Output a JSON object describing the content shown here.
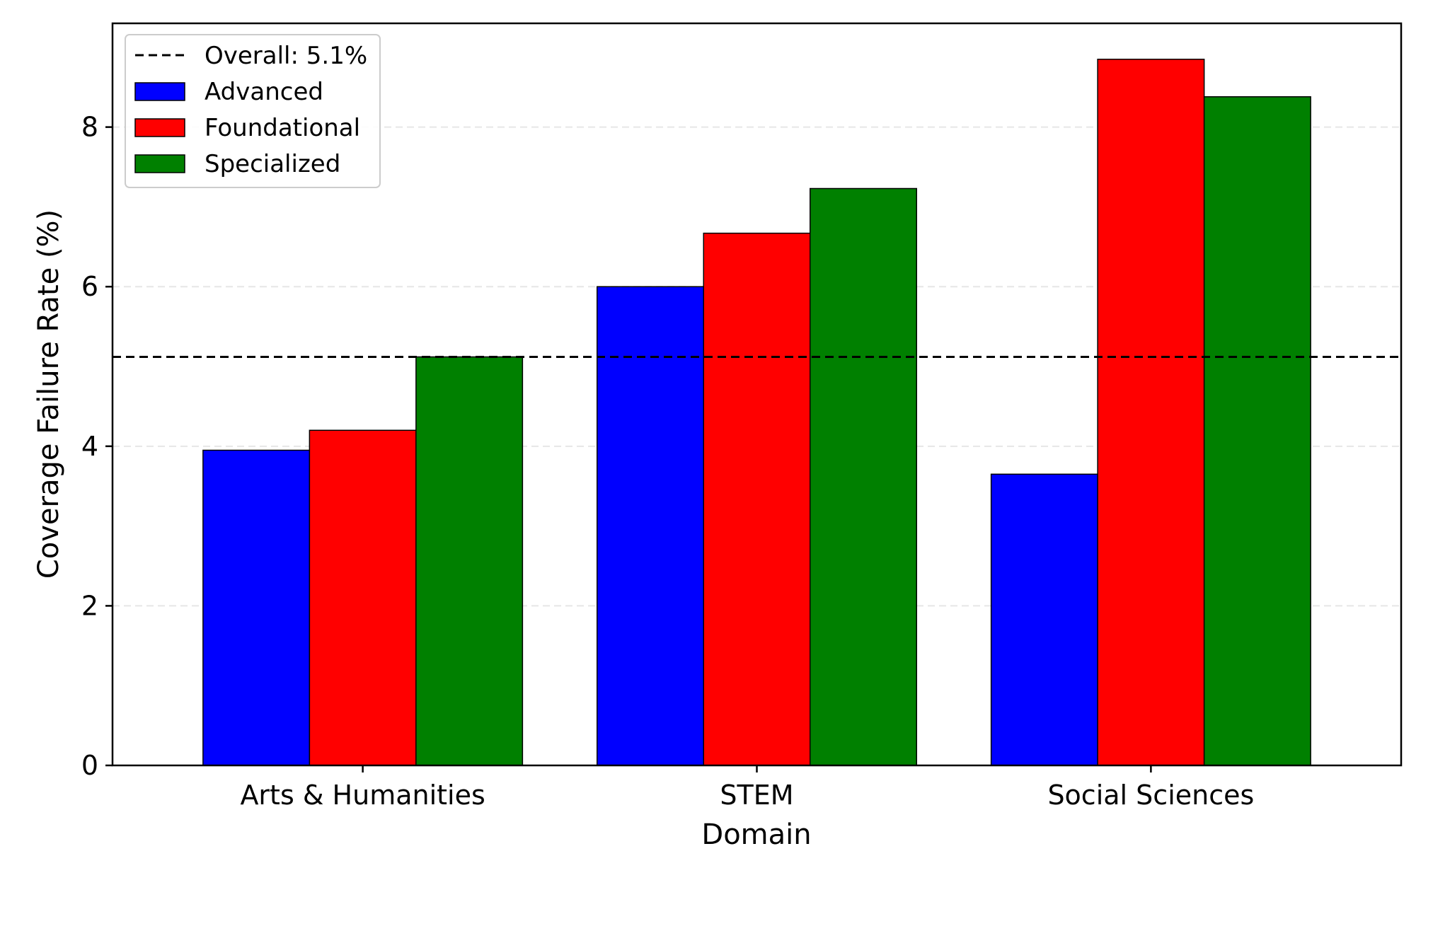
{
  "chart_data": {
    "type": "bar",
    "title": "",
    "xlabel": "Domain",
    "ylabel": "Coverage Failure Rate (%)",
    "categories": [
      "Arts & Humanities",
      "STEM",
      "Social Sciences"
    ],
    "series": [
      {
        "name": "Advanced",
        "color": "#0000ff",
        "values": [
          3.95,
          6.0,
          3.65
        ]
      },
      {
        "name": "Foundational",
        "color": "#ff0000",
        "values": [
          4.2,
          6.67,
          8.85
        ]
      },
      {
        "name": "Specialized",
        "color": "#008000",
        "values": [
          5.12,
          7.23,
          8.38
        ]
      }
    ],
    "reference_line": {
      "label": "Overall: 5.1%",
      "value": 5.12,
      "style": "dashed",
      "color": "#000000"
    },
    "ylim": [
      0,
      9.3
    ],
    "yticks": [
      0,
      2,
      4,
      6,
      8
    ],
    "grid": {
      "y": true,
      "style": "dashed",
      "color": "#e6e6e6"
    },
    "legend": {
      "placement": "top-left",
      "order": [
        "Overall: 5.1%",
        "Advanced",
        "Foundational",
        "Specialized"
      ]
    }
  }
}
